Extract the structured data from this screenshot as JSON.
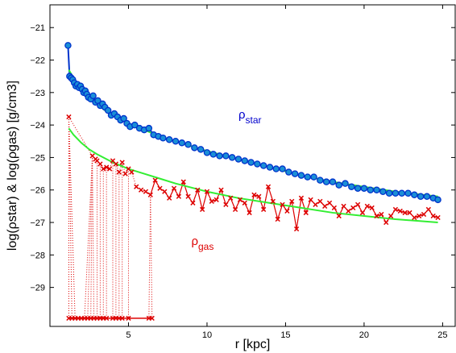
{
  "chart_data": {
    "type": "line",
    "xlabel": "r [kpc]",
    "ylabel": "log(ρstar) & log(ρgas) [g/cm3]",
    "xlim": [
      0,
      25.8
    ],
    "ylim": [
      -30.2,
      -20.3
    ],
    "x_ticks": [
      5,
      10,
      15,
      20,
      25
    ],
    "y_ticks": [
      -29,
      -28,
      -27,
      -26,
      -25,
      -24,
      -23,
      -22,
      -21
    ],
    "x_tick_labels": [
      "5",
      "10",
      "15",
      "20",
      "25"
    ],
    "y_tick_labels": [
      "−29",
      "−28",
      "−27",
      "−26",
      "−25",
      "−24",
      "−23",
      "−22",
      "−21"
    ],
    "grid": false,
    "annotations": [
      {
        "text": "ρ",
        "sub": "star",
        "x": 12.0,
        "y": -23.8,
        "color": "#0000cc"
      },
      {
        "text": "ρ",
        "sub": "gas",
        "x": 9.0,
        "y": -27.7,
        "color": "#dd0000"
      }
    ],
    "series": [
      {
        "style": "star-points",
        "color": "#0033cc",
        "fill": "#1a8fd6",
        "x": [
          1.15,
          1.25,
          1.35,
          1.45,
          1.55,
          1.65,
          1.75,
          1.85,
          1.95,
          2.05,
          2.15,
          2.25,
          2.35,
          2.45,
          2.6,
          2.75,
          2.9,
          3.05,
          3.2,
          3.35,
          3.5,
          3.7,
          3.9,
          4.1,
          4.3,
          4.5,
          4.7,
          4.9,
          5.1,
          5.4,
          5.7,
          6.0,
          6.3,
          6.6,
          6.9,
          7.2,
          7.6,
          8.0,
          8.4,
          8.8,
          9.2,
          9.6,
          10.0,
          10.4,
          10.8,
          11.2,
          11.6,
          12.0,
          12.4,
          12.8,
          13.2,
          13.6,
          14.0,
          14.4,
          14.8,
          15.2,
          15.6,
          16.0,
          16.4,
          16.8,
          17.2,
          17.6,
          18.0,
          18.4,
          18.8,
          19.2,
          19.6,
          20.0,
          20.4,
          20.8,
          21.2,
          21.6,
          22.0,
          22.4,
          22.8,
          23.2,
          23.6,
          24.0,
          24.4,
          24.7
        ],
        "y": [
          -21.55,
          -22.5,
          -22.55,
          -22.6,
          -22.7,
          -22.8,
          -22.75,
          -22.85,
          -22.8,
          -22.9,
          -23.0,
          -22.95,
          -23.05,
          -23.15,
          -23.2,
          -23.1,
          -23.3,
          -23.25,
          -23.4,
          -23.35,
          -23.45,
          -23.55,
          -23.7,
          -23.65,
          -23.75,
          -23.85,
          -23.8,
          -23.95,
          -24.05,
          -24.0,
          -24.1,
          -24.15,
          -24.1,
          -24.3,
          -24.35,
          -24.4,
          -24.45,
          -24.5,
          -24.55,
          -24.6,
          -24.7,
          -24.75,
          -24.85,
          -24.9,
          -24.95,
          -24.95,
          -25.0,
          -25.05,
          -25.1,
          -25.15,
          -25.2,
          -25.25,
          -25.3,
          -25.35,
          -25.35,
          -25.45,
          -25.5,
          -25.55,
          -25.6,
          -25.6,
          -25.7,
          -25.75,
          -25.75,
          -25.85,
          -25.8,
          -25.9,
          -25.95,
          -25.95,
          -26.0,
          -26.0,
          -26.05,
          -26.1,
          -26.1,
          -26.1,
          -26.1,
          -26.15,
          -26.2,
          -26.2,
          -26.25,
          -26.3
        ]
      },
      {
        "style": "gas-points",
        "color": "#dd0000",
        "x": [
          1.2,
          2.7,
          2.9,
          3.0,
          3.2,
          3.4,
          3.6,
          3.8,
          4.0,
          4.2,
          4.4,
          4.6,
          4.8,
          5.0,
          5.2,
          5.5,
          5.8,
          6.1,
          6.4,
          6.7,
          7.0,
          7.3,
          7.6,
          7.9,
          8.2,
          8.5,
          8.8,
          9.1,
          9.4,
          9.7,
          10.0,
          10.3,
          10.6,
          10.9,
          11.2,
          11.5,
          11.8,
          12.1,
          12.4,
          12.7,
          13.0,
          13.3,
          13.6,
          13.9,
          14.2,
          14.5,
          14.8,
          15.1,
          15.4,
          15.7,
          16.0,
          16.3,
          16.6,
          16.9,
          17.2,
          17.5,
          17.8,
          18.1,
          18.4,
          18.7,
          19.0,
          19.3,
          19.6,
          19.9,
          20.2,
          20.5,
          20.8,
          21.1,
          21.4,
          21.7,
          22.0,
          22.3,
          22.6,
          22.9,
          23.2,
          23.5,
          23.8,
          24.1,
          24.4,
          24.7
        ],
        "y": [
          -23.75,
          -24.95,
          -25.05,
          -25.1,
          -25.2,
          -25.35,
          -25.3,
          -25.35,
          -25.1,
          -25.2,
          -25.45,
          -25.15,
          -25.5,
          -25.35,
          -25.45,
          -25.9,
          -26.0,
          -26.05,
          -26.15,
          -25.7,
          -25.95,
          -26.05,
          -26.25,
          -25.95,
          -26.2,
          -25.75,
          -26.2,
          -26.4,
          -26.0,
          -26.6,
          -26.05,
          -26.35,
          -26.3,
          -26.0,
          -26.45,
          -26.25,
          -26.6,
          -26.3,
          -26.4,
          -26.7,
          -26.15,
          -26.2,
          -26.6,
          -25.9,
          -26.35,
          -26.9,
          -26.45,
          -26.65,
          -26.35,
          -27.2,
          -26.25,
          -26.7,
          -26.3,
          -26.45,
          -26.35,
          -26.5,
          -26.4,
          -26.55,
          -26.8,
          -26.5,
          -26.65,
          -26.55,
          -26.45,
          -26.7,
          -26.5,
          -26.55,
          -26.8,
          -26.75,
          -27.0,
          -26.8,
          -26.6,
          -26.65,
          -26.7,
          -26.7,
          -26.85,
          -26.8,
          -26.75,
          -26.6,
          -26.8,
          -26.85
        ]
      },
      {
        "style": "gas-low-points",
        "color": "#dd0000",
        "x": [
          1.2,
          1.4,
          1.6,
          1.8,
          2.0,
          2.2,
          2.4,
          2.6,
          2.8,
          3.0,
          3.2,
          3.4,
          3.6,
          4.0,
          4.2,
          4.4,
          4.6,
          5.0,
          6.3,
          6.5
        ],
        "y": [
          -29.95,
          -29.95,
          -29.95,
          -29.95,
          -29.95,
          -29.95,
          -29.95,
          -29.95,
          -29.95,
          -29.95,
          -29.95,
          -29.95,
          -29.95,
          -29.95,
          -29.95,
          -29.95,
          -29.95,
          -29.95,
          -29.95,
          -29.95
        ]
      },
      {
        "style": "fit",
        "color": "#33ee33",
        "x": [
          1.2,
          1.5,
          2.0,
          2.5,
          3.0,
          3.5,
          4.0,
          5.0,
          6.0,
          7.0,
          8.0,
          10.0,
          12.0,
          14.0,
          16.0,
          18.0,
          20.0,
          22.0,
          24.7
        ],
        "y": [
          -22.3,
          -22.55,
          -22.9,
          -23.15,
          -23.35,
          -23.55,
          -23.7,
          -23.95,
          -24.15,
          -24.35,
          -24.5,
          -24.8,
          -25.05,
          -25.3,
          -25.55,
          -25.75,
          -25.9,
          -26.05,
          -26.2
        ]
      },
      {
        "style": "fit",
        "color": "#33ee33",
        "x": [
          1.2,
          1.5,
          2.0,
          2.5,
          3.0,
          4.0,
          5.0,
          6.0,
          7.0,
          8.0,
          10.0,
          12.0,
          14.0,
          16.0,
          18.0,
          20.0,
          22.0,
          24.7
        ],
        "y": [
          -24.1,
          -24.3,
          -24.55,
          -24.75,
          -24.9,
          -25.15,
          -25.35,
          -25.5,
          -25.65,
          -25.8,
          -26.05,
          -26.25,
          -26.4,
          -26.55,
          -26.7,
          -26.8,
          -26.9,
          -27.0
        ]
      }
    ]
  }
}
